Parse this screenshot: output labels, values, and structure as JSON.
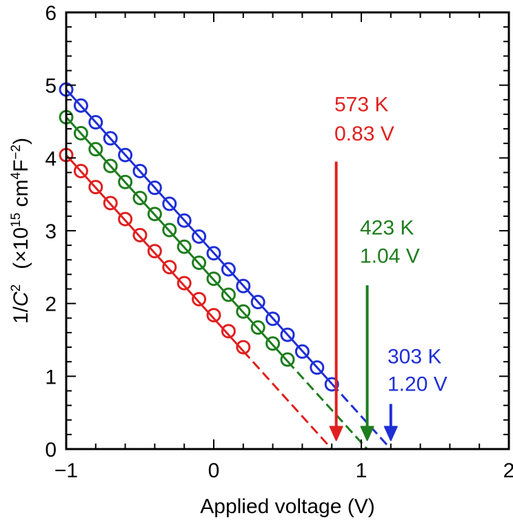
{
  "chart_data": {
    "type": "scatter",
    "title": "",
    "xlabel": "Applied voltage (V)",
    "ylabel_main": "1/",
    "ylabel_italic": "C",
    "ylabel_sup1": "2",
    "ylabel_rest_a": "(×10",
    "ylabel_sup2": "15",
    "ylabel_rest_b": " cm",
    "ylabel_sup3": "4",
    "ylabel_rest_c": "F",
    "ylabel_sup4": "−2",
    "ylabel_rest_d": ")",
    "xlim": [
      -1,
      2
    ],
    "ylim": [
      0,
      6
    ],
    "x_ticks": [
      -1,
      0,
      1,
      2
    ],
    "x_tick_labels": [
      "−1",
      "0",
      "1",
      "2"
    ],
    "y_ticks": [
      0,
      1,
      2,
      3,
      4,
      5,
      6
    ],
    "y_tick_labels": [
      "0",
      "1",
      "2",
      "3",
      "4",
      "5",
      "6"
    ],
    "grid": false,
    "series": [
      {
        "name": "303 K",
        "color": "#1f2fd6",
        "x": [
          -1.0,
          -0.9,
          -0.8,
          -0.7,
          -0.6,
          -0.5,
          -0.4,
          -0.3,
          -0.2,
          -0.1,
          0.0,
          0.1,
          0.2,
          0.3,
          0.4,
          0.5,
          0.6,
          0.7,
          0.8
        ],
        "y": [
          4.94,
          4.72,
          4.49,
          4.27,
          4.04,
          3.82,
          3.59,
          3.37,
          3.14,
          2.92,
          2.69,
          2.47,
          2.24,
          2.02,
          1.79,
          1.57,
          1.34,
          1.12,
          0.89
        ],
        "fit_x": [
          -1.0,
          1.2
        ],
        "fit_y": [
          4.94,
          0.0
        ],
        "label_line1": "303 K",
        "label_line2": "1.20 V",
        "intercept": 1.2
      },
      {
        "name": "423 K",
        "color": "#1e7d1e",
        "x": [
          -1.0,
          -0.9,
          -0.8,
          -0.7,
          -0.6,
          -0.5,
          -0.4,
          -0.3,
          -0.2,
          -0.1,
          0.0,
          0.1,
          0.2,
          0.3,
          0.4,
          0.5
        ],
        "y": [
          4.56,
          4.34,
          4.12,
          3.89,
          3.67,
          3.45,
          3.23,
          3.01,
          2.78,
          2.56,
          2.34,
          2.12,
          1.89,
          1.67,
          1.45,
          1.23
        ],
        "fit_x": [
          -1.0,
          1.04
        ],
        "fit_y": [
          4.56,
          0.0
        ],
        "label_line1": "423 K",
        "label_line2": "1.04 V",
        "intercept": 1.04
      },
      {
        "name": "573 K",
        "color": "#e02020",
        "x": [
          -1.0,
          -0.9,
          -0.8,
          -0.7,
          -0.6,
          -0.5,
          -0.4,
          -0.3,
          -0.2,
          -0.1,
          0.0,
          0.1,
          0.2
        ],
        "y": [
          4.04,
          3.82,
          3.6,
          3.38,
          3.16,
          2.94,
          2.72,
          2.5,
          2.28,
          2.06,
          1.84,
          1.62,
          1.4
        ],
        "fit_x": [
          -1.0,
          0.8
        ],
        "fit_y": [
          4.04,
          0.0
        ],
        "label_line1": "573 K",
        "label_line2": "0.83 V",
        "intercept": 0.83
      }
    ]
  }
}
